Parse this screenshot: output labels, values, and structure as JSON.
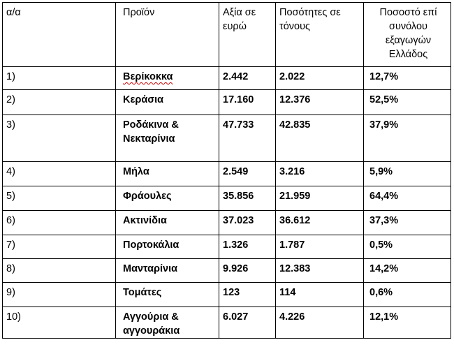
{
  "headers": {
    "aa": "α/α",
    "product": "Προϊόν",
    "value": "Αξία σε ευρώ",
    "tons": "Ποσότητες σε τόνους",
    "share": "Ποσοστό επί συνόλου εξαγωγών Ελλάδος"
  },
  "rows": [
    {
      "aa": "1)",
      "product": "Βερίκοκκα",
      "value": "2.442",
      "tons": "2.022",
      "share": "12,7%"
    },
    {
      "aa": "2)",
      "product": "Κεράσια",
      "value": "17.160",
      "tons": "12.376",
      "share": "52,5%"
    },
    {
      "aa": "3)",
      "product": "Ροδάκινα & Νεκταρίνια",
      "value": "47.733",
      "tons": "42.835",
      "share": "37,9%"
    },
    {
      "aa": "4)",
      "product": "Μήλα",
      "value": "2.549",
      "tons": "3.216",
      "share": "5,9%"
    },
    {
      "aa": "5)",
      "product": "Φράουλες",
      "value": "35.856",
      "tons": "21.959",
      "share": "64,4%"
    },
    {
      "aa": "6)",
      "product": "Ακτινίδια",
      "value": "37.023",
      "tons": "36.612",
      "share": "37,3%"
    },
    {
      "aa": "7)",
      "product": "Πορτοκάλια",
      "value": "1.326",
      "tons": "1.787",
      "share": "0,5%"
    },
    {
      "aa": "8)",
      "product": "Μανταρίνια",
      "value": "9.926",
      "tons": "12.383",
      "share": "14,2%"
    },
    {
      "aa": "9)",
      "product": "Τομάτες",
      "value": "123",
      "tons": "114",
      "share": "0,6%"
    },
    {
      "aa": "10)",
      "product": "Αγγούρια & αγγουράκια",
      "value": "6.027",
      "tons": "4.226",
      "share": "12,1%"
    }
  ]
}
